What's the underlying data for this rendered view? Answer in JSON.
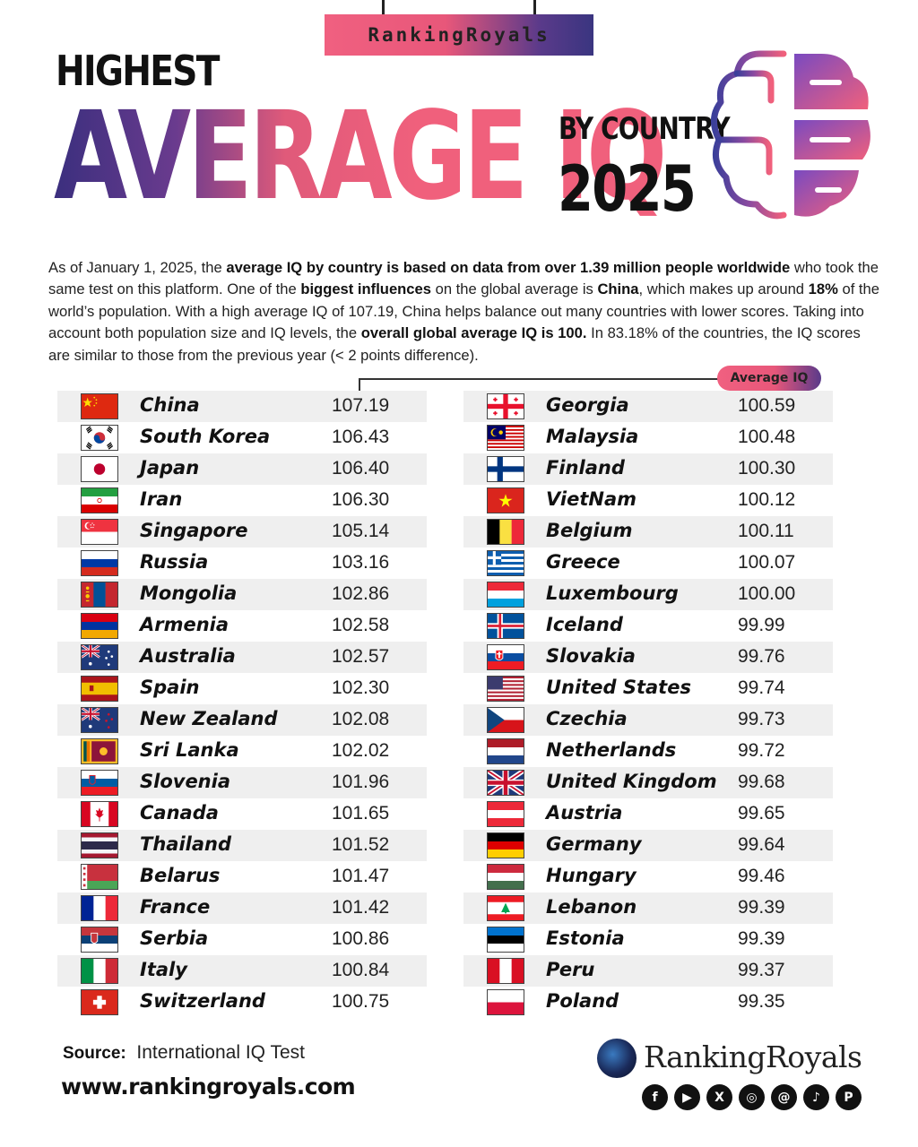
{
  "header": {
    "brand_tag": "RankingRoyals",
    "line1": "HIGHEST",
    "line2": "AVERAGE IQ",
    "line3": "BY COUNTRY",
    "line4": "2025"
  },
  "intro": [
    {
      "t": "As of January 1, 2025, the ",
      "b": false
    },
    {
      "t": "average IQ by country is based on data from over 1.39 million people worldwide",
      "b": true
    },
    {
      "t": " who took the same test on this platform. One of the ",
      "b": false
    },
    {
      "t": "biggest influences",
      "b": true
    },
    {
      "t": " on the global average is ",
      "b": false
    },
    {
      "t": "China",
      "b": true
    },
    {
      "t": ", which makes up around ",
      "b": false
    },
    {
      "t": "18%",
      "b": true
    },
    {
      "t": " of the world’s population. With a high average IQ of 107.19, China helps balance out many countries with lower scores. Taking into account both population size and IQ levels, the ",
      "b": false
    },
    {
      "t": "overall global average IQ is 100.",
      "b": true
    },
    {
      "t": " In 83.18% of the countries, the IQ scores are similar to those from the previous year (< 2 points difference).",
      "b": false
    }
  ],
  "value_header": "Average IQ",
  "chart_data": {
    "type": "table",
    "columns": [
      "Country",
      "Average IQ"
    ],
    "rows": [
      {
        "country": "China",
        "value": "107.19",
        "flag": "china-flag"
      },
      {
        "country": "South Korea",
        "value": "106.43",
        "flag": "south-korea-flag"
      },
      {
        "country": "Japan",
        "value": "106.40",
        "flag": "japan-flag"
      },
      {
        "country": "Iran",
        "value": "106.30",
        "flag": "iran-flag"
      },
      {
        "country": "Singapore",
        "value": "105.14",
        "flag": "singapore-flag"
      },
      {
        "country": "Russia",
        "value": "103.16",
        "flag": "russia-flag"
      },
      {
        "country": "Mongolia",
        "value": "102.86",
        "flag": "mongolia-flag"
      },
      {
        "country": "Armenia",
        "value": "102.58",
        "flag": "armenia-flag"
      },
      {
        "country": "Australia",
        "value": "102.57",
        "flag": "australia-flag"
      },
      {
        "country": "Spain",
        "value": "102.30",
        "flag": "spain-flag"
      },
      {
        "country": "New Zealand",
        "value": "102.08",
        "flag": "new-zealand-flag"
      },
      {
        "country": "Sri Lanka",
        "value": "102.02",
        "flag": "sri-lanka-flag"
      },
      {
        "country": "Slovenia",
        "value": "101.96",
        "flag": "slovenia-flag"
      },
      {
        "country": "Canada",
        "value": "101.65",
        "flag": "canada-flag"
      },
      {
        "country": "Thailand",
        "value": "101.52",
        "flag": "thailand-flag"
      },
      {
        "country": "Belarus",
        "value": "101.47",
        "flag": "belarus-flag"
      },
      {
        "country": "France",
        "value": "101.42",
        "flag": "france-flag"
      },
      {
        "country": "Serbia",
        "value": "100.86",
        "flag": "serbia-flag"
      },
      {
        "country": "Italy",
        "value": "100.84",
        "flag": "italy-flag"
      },
      {
        "country": "Switzerland",
        "value": "100.75",
        "flag": "switzerland-flag"
      },
      {
        "country": "Georgia",
        "value": "100.59",
        "flag": "georgia-flag"
      },
      {
        "country": "Malaysia",
        "value": "100.48",
        "flag": "malaysia-flag"
      },
      {
        "country": "Finland",
        "value": "100.30",
        "flag": "finland-flag"
      },
      {
        "country": "VietNam",
        "value": "100.12",
        "flag": "vietnam-flag"
      },
      {
        "country": "Belgium",
        "value": "100.11",
        "flag": "belgium-flag"
      },
      {
        "country": "Greece",
        "value": "100.07",
        "flag": "greece-flag"
      },
      {
        "country": "Luxembourg",
        "value": "100.00",
        "flag": "luxembourg-flag"
      },
      {
        "country": "Iceland",
        "value": "99.99",
        "flag": "iceland-flag"
      },
      {
        "country": "Slovakia",
        "value": "99.76",
        "flag": "slovakia-flag"
      },
      {
        "country": "United States",
        "value": "99.74",
        "flag": "united-states-flag"
      },
      {
        "country": "Czechia",
        "value": "99.73",
        "flag": "czechia-flag"
      },
      {
        "country": "Netherlands",
        "value": "99.72",
        "flag": "netherlands-flag"
      },
      {
        "country": "United Kingdom",
        "value": "99.68",
        "flag": "united-kingdom-flag"
      },
      {
        "country": "Austria",
        "value": "99.65",
        "flag": "austria-flag"
      },
      {
        "country": "Germany",
        "value": "99.64",
        "flag": "germany-flag"
      },
      {
        "country": "Hungary",
        "value": "99.46",
        "flag": "hungary-flag"
      },
      {
        "country": "Lebanon",
        "value": "99.39",
        "flag": "lebanon-flag"
      },
      {
        "country": "Estonia",
        "value": "99.39",
        "flag": "estonia-flag"
      },
      {
        "country": "Peru",
        "value": "99.37",
        "flag": "peru-flag"
      },
      {
        "country": "Poland",
        "value": "99.35",
        "flag": "poland-flag"
      }
    ]
  },
  "footer": {
    "source_label": "Source:",
    "source_value": "International IQ Test",
    "website": "www.rankingroyals.com",
    "logo_text": "RankingRoyals",
    "socials": [
      "facebook-icon",
      "youtube-icon",
      "x-icon",
      "instagram-icon",
      "threads-icon",
      "tiktok-icon",
      "pinterest-icon"
    ]
  },
  "colors": {
    "accent_pink": "#f0607c",
    "accent_purple": "#3b2f7e",
    "row_shade": "#efefef"
  }
}
